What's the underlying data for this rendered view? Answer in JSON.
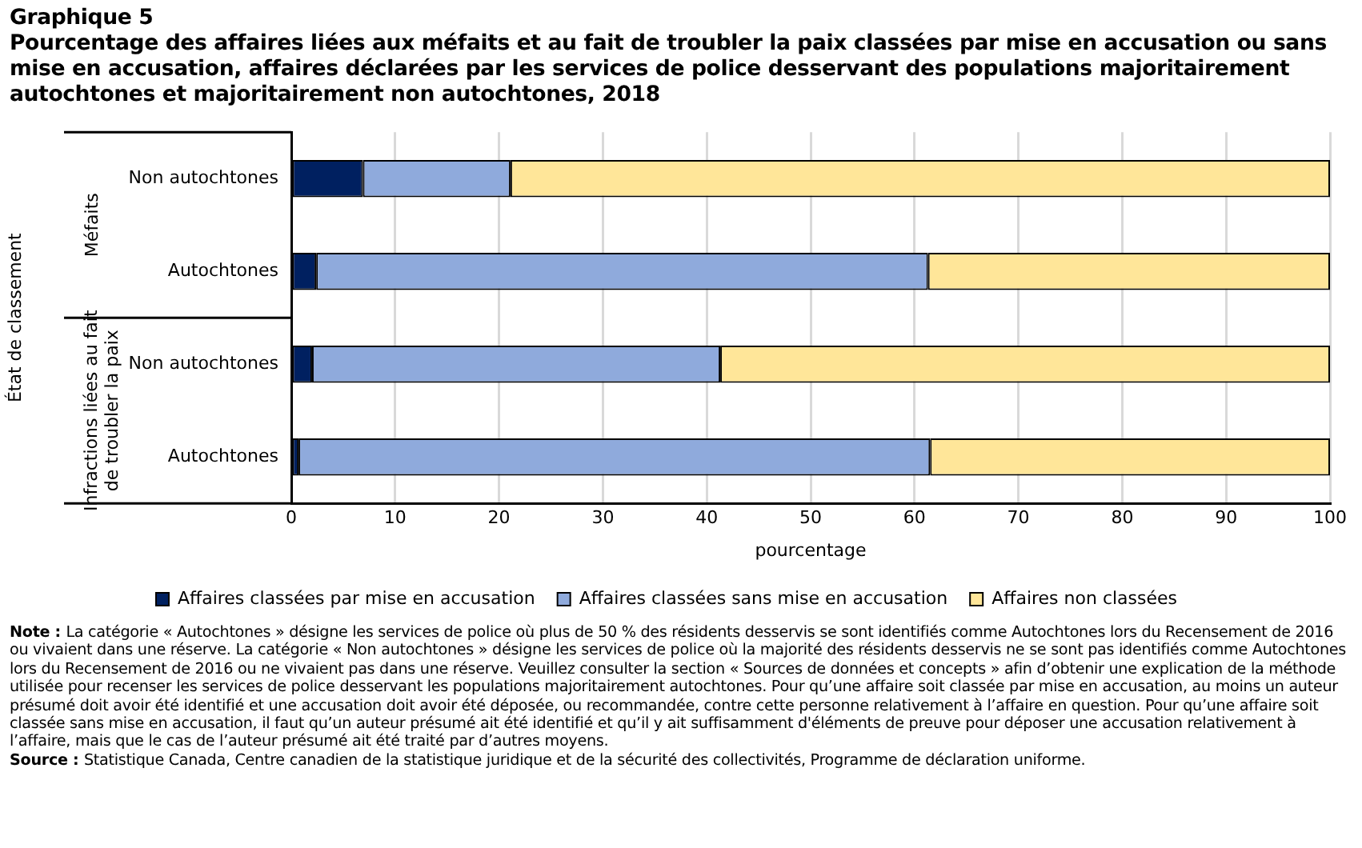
{
  "chart_data": {
    "type": "bar",
    "orientation": "horizontal",
    "stacked": true,
    "title": "Graphique 5",
    "subtitle": "Pourcentage des affaires liées aux méfaits et au fait de troubler la paix classées par mise en accusation ou sans mise en accusation, affaires déclarées par les services de police desservant des populations majoritairement autochtones et majoritairement non autochtones, 2018",
    "categories": [
      "Non autochtones",
      "Autochtones",
      "Non autochtones",
      "Autochtones"
    ],
    "series": [
      {
        "name": "Affaires classées par mise en accusation",
        "color": "#002060",
        "values": [
          6.9,
          2.4,
          2.0,
          0.7
        ]
      },
      {
        "name": "Affaires classées sans mise en accusation",
        "color": "#8faadc",
        "values": [
          14.2,
          58.9,
          39.3,
          60.8
        ]
      },
      {
        "name": "Affaires non classées",
        "color": "#ffe699",
        "values": [
          78.9,
          38.7,
          58.7,
          38.5
        ]
      }
    ],
    "xlabel": "pourcentage",
    "xlim": [
      0,
      100
    ],
    "xticks": [
      0,
      10,
      20,
      30,
      40,
      50,
      60,
      70,
      80,
      90,
      100
    ],
    "grid": "x",
    "legend": "bottom",
    "annotations": [
      "État de classement",
      "Méfaits",
      "Infractions liées au fait de troubler la paix",
      "Note : La catégorie « Autochtones » désigne les services de police où plus de 50 % des résidents desservis se sont identifiés comme Autochtones lors du Recensement de 2016 ou vivaient dans une réserve. La catégorie « Non autochtones » désigne les services de police où la majorité des résidents desservis ne se sont pas identifiés comme Autochtones lors du Recensement de 2016 ou ne vivaient pas dans une réserve. Veuillez consulter la section « Sources de données et concepts » afin d’obtenir une explication de la méthode utilisée pour recenser les services de police desservant les populations majoritairement autochtones. Pour qu’une affaire soit classée par mise en accusation, au moins un auteur présumé doit avoir été identifié et une accusation doit avoir été déposée, ou recommandée, contre cette personne relativement à l’affaire en question. Pour qu’une affaire soit classée sans mise en accusation, il faut qu’un auteur présumé ait été identifié et qu’il y ait suffisamment d'éléments de preuve pour déposer une accusation relativement à l’affaire, mais que le cas de l’auteur présumé ait été traité par d’autres moyens.",
      "Source : Statistique Canada, Centre canadien de la statistique juridique et de la sécurité des collectivités, Programme de déclaration uniforme."
    ]
  }
}
